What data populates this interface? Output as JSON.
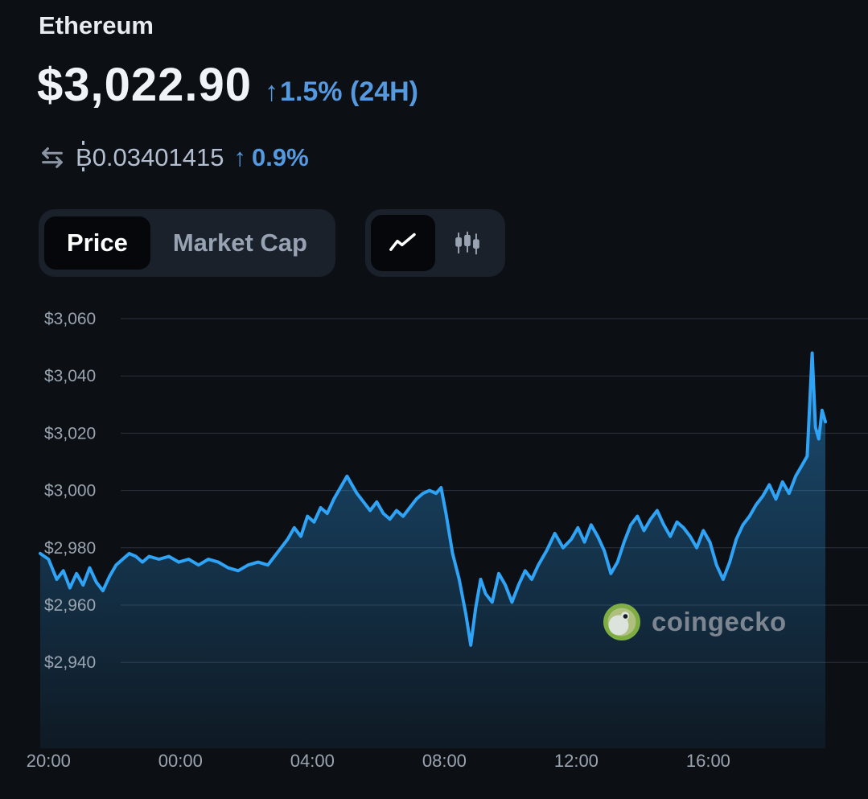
{
  "header": {
    "title": "Ethereum",
    "price": "$3,022.90",
    "up_arrow": "↑",
    "change_24h": "1.5% (24H)",
    "btc_value": "₿0.03401415",
    "btc_up_arrow": "↑",
    "btc_change": "0.9%"
  },
  "controls": {
    "price_label": "Price",
    "market_cap_label": "Market Cap"
  },
  "icons": {
    "swap": "⇄",
    "line_chart": "zigzag-line",
    "candlestick": "candles",
    "up_arrow": "↑",
    "coingecko_logo": "green-gecko-circle"
  },
  "watermark": {
    "text": "coingecko"
  },
  "colors": {
    "background": "#0c0f14",
    "accent_blue": "#5599e0",
    "chart_line": "#2fa4f7",
    "coingecko_green": "#8dc63f"
  },
  "chart_data": {
    "type": "area",
    "title": "",
    "xlabel": "",
    "ylabel": "",
    "x_unit": "hours",
    "x_ticks": [
      "20:00",
      "00:00",
      "04:00",
      "08:00",
      "12:00",
      "16:00"
    ],
    "x_tick_hours": [
      0.25,
      4.25,
      8.25,
      12.25,
      16.25,
      20.25
    ],
    "t_max": 23.8,
    "y_ticks": [
      "$3,060",
      "$3,040",
      "$3,020",
      "$3,000",
      "$2,980",
      "$2,960",
      "$2,940"
    ],
    "y_tick_values": [
      3060,
      3040,
      3020,
      3000,
      2980,
      2960,
      2940
    ],
    "ylim": [
      2932,
      3068
    ],
    "grid": true,
    "line_color": "#2fa4f7",
    "t": [
      0,
      0.25,
      0.5,
      0.7,
      0.9,
      1.1,
      1.3,
      1.5,
      1.7,
      1.9,
      2.1,
      2.3,
      2.5,
      2.7,
      2.9,
      3.1,
      3.3,
      3.6,
      3.9,
      4.2,
      4.5,
      4.8,
      5.1,
      5.4,
      5.7,
      6.0,
      6.3,
      6.6,
      6.9,
      7.1,
      7.3,
      7.5,
      7.7,
      7.9,
      8.1,
      8.3,
      8.5,
      8.7,
      8.9,
      9.1,
      9.3,
      9.45,
      9.6,
      9.8,
      10.0,
      10.2,
      10.4,
      10.6,
      10.8,
      11.0,
      11.2,
      11.4,
      11.6,
      11.8,
      12.0,
      12.15,
      12.3,
      12.5,
      12.7,
      12.9,
      13.05,
      13.2,
      13.35,
      13.5,
      13.7,
      13.9,
      14.1,
      14.3,
      14.5,
      14.7,
      14.9,
      15.1,
      15.35,
      15.6,
      15.85,
      16.1,
      16.3,
      16.5,
      16.7,
      16.9,
      17.1,
      17.3,
      17.5,
      17.7,
      17.9,
      18.1,
      18.3,
      18.5,
      18.7,
      18.9,
      19.1,
      19.3,
      19.5,
      19.7,
      19.9,
      20.1,
      20.3,
      20.5,
      20.7,
      20.9,
      21.1,
      21.3,
      21.5,
      21.7,
      21.9,
      22.1,
      22.3,
      22.5,
      22.7,
      22.9,
      23.1,
      23.25,
      23.4,
      23.5,
      23.6,
      23.7,
      23.8
    ],
    "values": [
      2978,
      2976,
      2969,
      2972,
      2966,
      2971,
      2967,
      2973,
      2968,
      2965,
      2970,
      2974,
      2976,
      2978,
      2977,
      2975,
      2977,
      2976,
      2977,
      2975,
      2976,
      2974,
      2976,
      2975,
      2973,
      2972,
      2974,
      2975,
      2974,
      2977,
      2980,
      2983,
      2987,
      2984,
      2991,
      2989,
      2994,
      2992,
      2997,
      3001,
      3005,
      3002,
      2999,
      2996,
      2993,
      2996,
      2992,
      2990,
      2993,
      2991,
      2994,
      2997,
      2999,
      3000,
      2999,
      3001,
      2992,
      2978,
      2969,
      2957,
      2946,
      2959,
      2969,
      2964,
      2961,
      2971,
      2967,
      2961,
      2967,
      2972,
      2969,
      2974,
      2979,
      2985,
      2980,
      2983,
      2987,
      2982,
      2988,
      2984,
      2979,
      2971,
      2975,
      2982,
      2988,
      2991,
      2986,
      2990,
      2993,
      2988,
      2984,
      2989,
      2987,
      2984,
      2980,
      2986,
      2982,
      2974,
      2969,
      2975,
      2983,
      2988,
      2991,
      2995,
      2998,
      3002,
      2997,
      3003,
      2999,
      3005,
      3009,
      3012,
      3048,
      3022,
      3018,
      3028,
      3024
    ]
  }
}
